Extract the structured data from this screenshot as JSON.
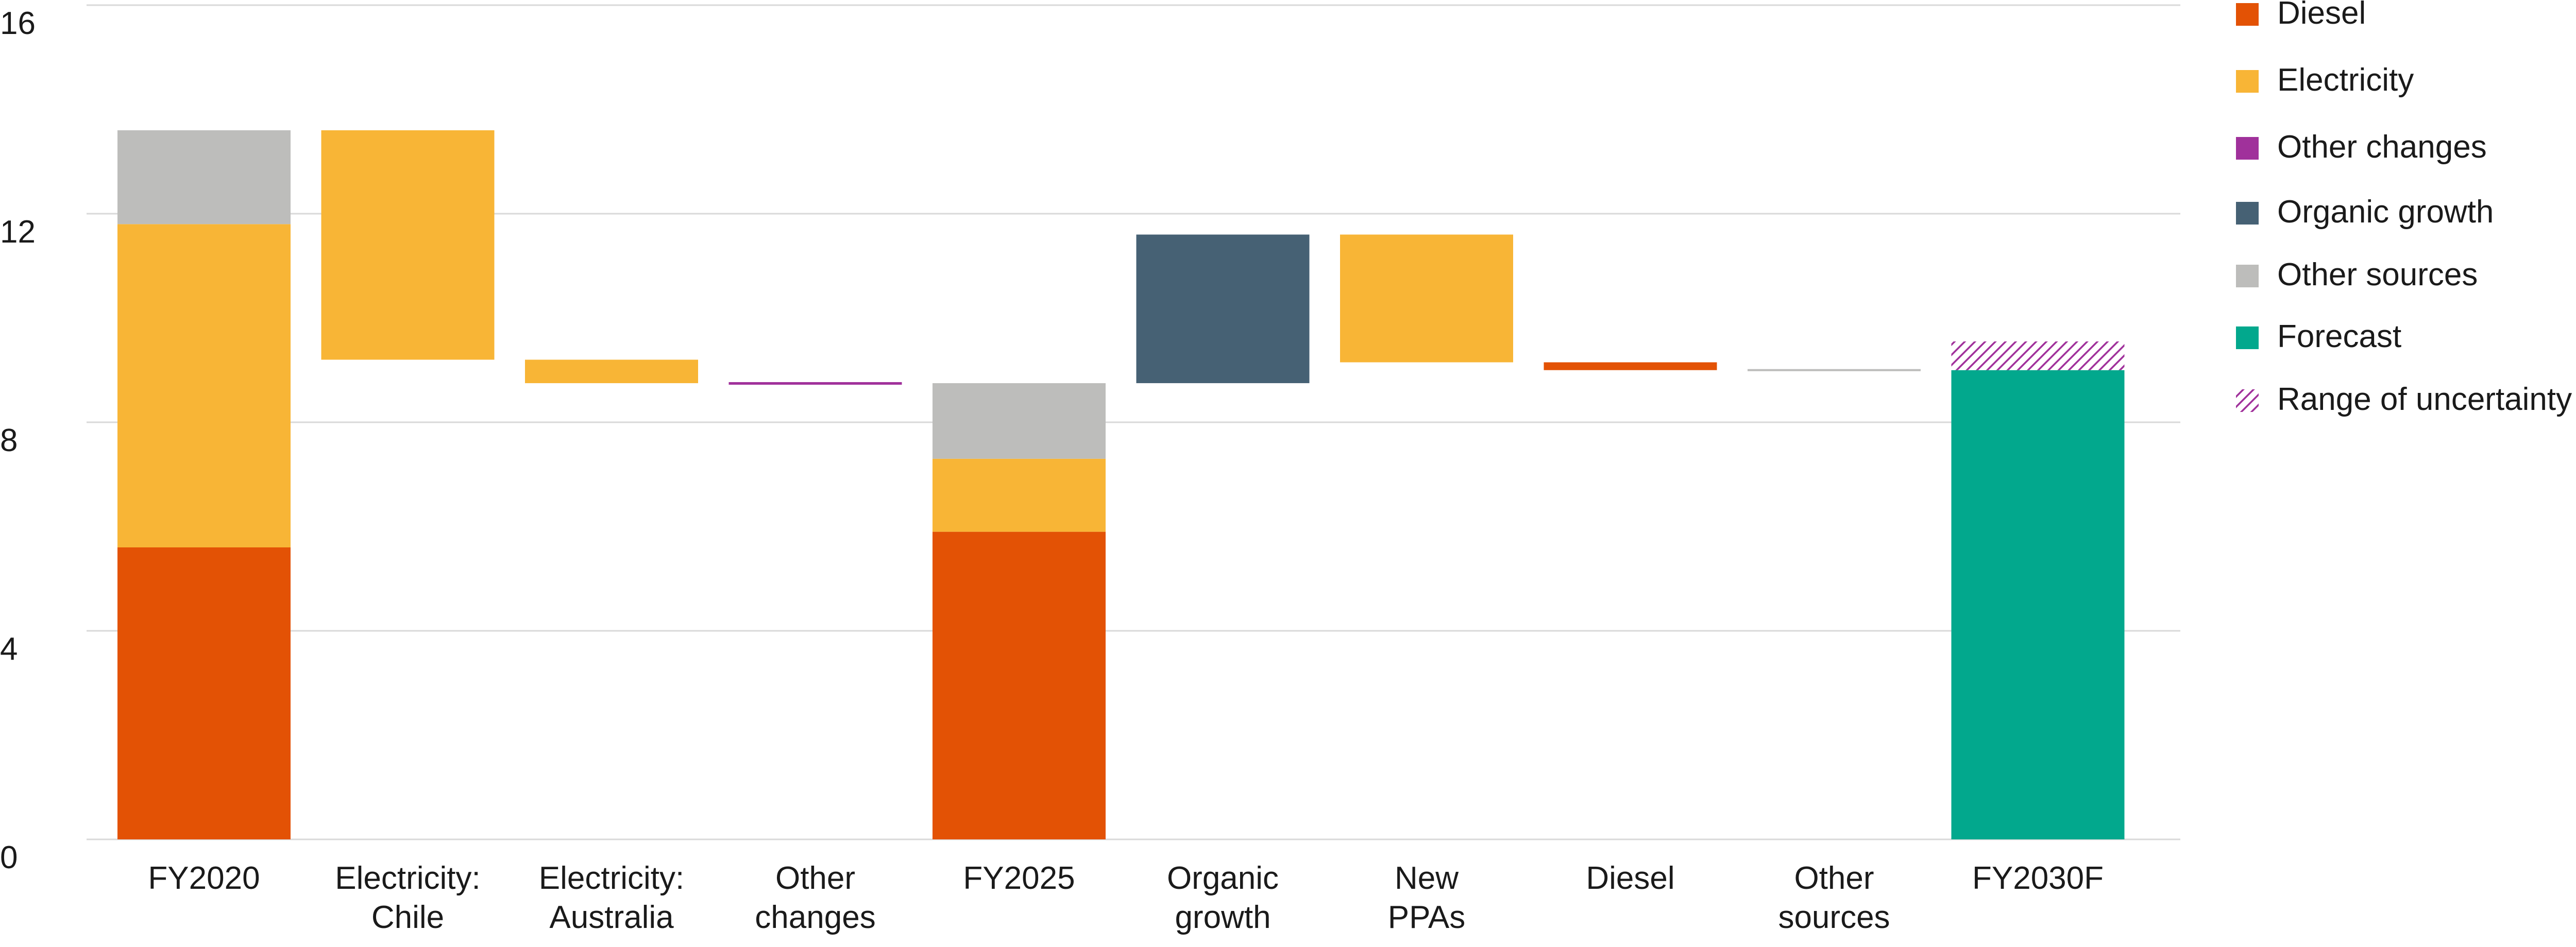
{
  "chart_data": {
    "type": "bar",
    "subtype": "waterfall",
    "title": "",
    "xlabel": "",
    "ylabel": "",
    "ylim": [
      0,
      16
    ],
    "y_ticks": [
      "0",
      "4",
      "8",
      "12",
      "16"
    ],
    "grid": true,
    "legend_position": "right",
    "colors": {
      "Diesel": "#e35205",
      "Electricity": "#f8b536",
      "Other changes": "#a0319b",
      "Organic growth": "#466174",
      "Other sources": "#bdbdbb",
      "Forecast": "#02a88d",
      "Range of uncertainty": "#a0319b",
      "gridline": "#d9d9d9"
    },
    "legend": [
      {
        "label": "Diesel",
        "series": "Diesel",
        "hatched": false
      },
      {
        "label": "Electricity",
        "series": "Electricity",
        "hatched": false
      },
      {
        "label": "Other changes",
        "series": "Other changes",
        "hatched": false
      },
      {
        "label": "Organic growth",
        "series": "Organic growth",
        "hatched": false
      },
      {
        "label": "Other sources",
        "series": "Other sources",
        "hatched": false
      },
      {
        "label": "Forecast",
        "series": "Forecast",
        "hatched": false
      },
      {
        "label": "Range of uncertainty",
        "series": "Range of uncertainty",
        "hatched": true
      }
    ],
    "categories": [
      {
        "label": [
          "FY2020"
        ],
        "segments": [
          {
            "series": "Diesel",
            "from": 0,
            "to": 5.6
          },
          {
            "series": "Electricity",
            "from": 5.6,
            "to": 11.8
          },
          {
            "series": "Other sources",
            "from": 11.8,
            "to": 13.6
          }
        ]
      },
      {
        "label": [
          "Electricity:",
          "Chile"
        ],
        "segments": [
          {
            "series": "Electricity",
            "from": 9.2,
            "to": 13.6
          }
        ]
      },
      {
        "label": [
          "Electricity:",
          "Australia"
        ],
        "segments": [
          {
            "series": "Electricity",
            "from": 8.75,
            "to": 9.2
          }
        ]
      },
      {
        "label": [
          "Other",
          "changes"
        ],
        "segments": [
          {
            "series": "Other changes",
            "from": 8.72,
            "to": 8.77
          }
        ]
      },
      {
        "label": [
          "FY2025"
        ],
        "segments": [
          {
            "series": "Diesel",
            "from": 0,
            "to": 5.9
          },
          {
            "series": "Electricity",
            "from": 5.9,
            "to": 7.3
          },
          {
            "series": "Other sources",
            "from": 7.3,
            "to": 8.75
          }
        ]
      },
      {
        "label": [
          "Organic",
          "growth"
        ],
        "segments": [
          {
            "series": "Organic growth",
            "from": 8.75,
            "to": 11.6
          }
        ]
      },
      {
        "label": [
          "New",
          "PPAs"
        ],
        "segments": [
          {
            "series": "Electricity",
            "from": 9.15,
            "to": 11.6
          }
        ]
      },
      {
        "label": [
          "Diesel"
        ],
        "segments": [
          {
            "series": "Diesel",
            "from": 9.0,
            "to": 9.15
          }
        ]
      },
      {
        "label": [
          "Other",
          "sources"
        ],
        "segments": [
          {
            "series": "Other sources",
            "from": 8.98,
            "to": 9.02
          }
        ]
      },
      {
        "label": [
          "FY2030F"
        ],
        "segments": [
          {
            "series": "Forecast",
            "from": 0,
            "to": 9.0
          },
          {
            "series": "Range of uncertainty",
            "from": 9.0,
            "to": 9.55,
            "hatched": true
          }
        ]
      }
    ]
  }
}
